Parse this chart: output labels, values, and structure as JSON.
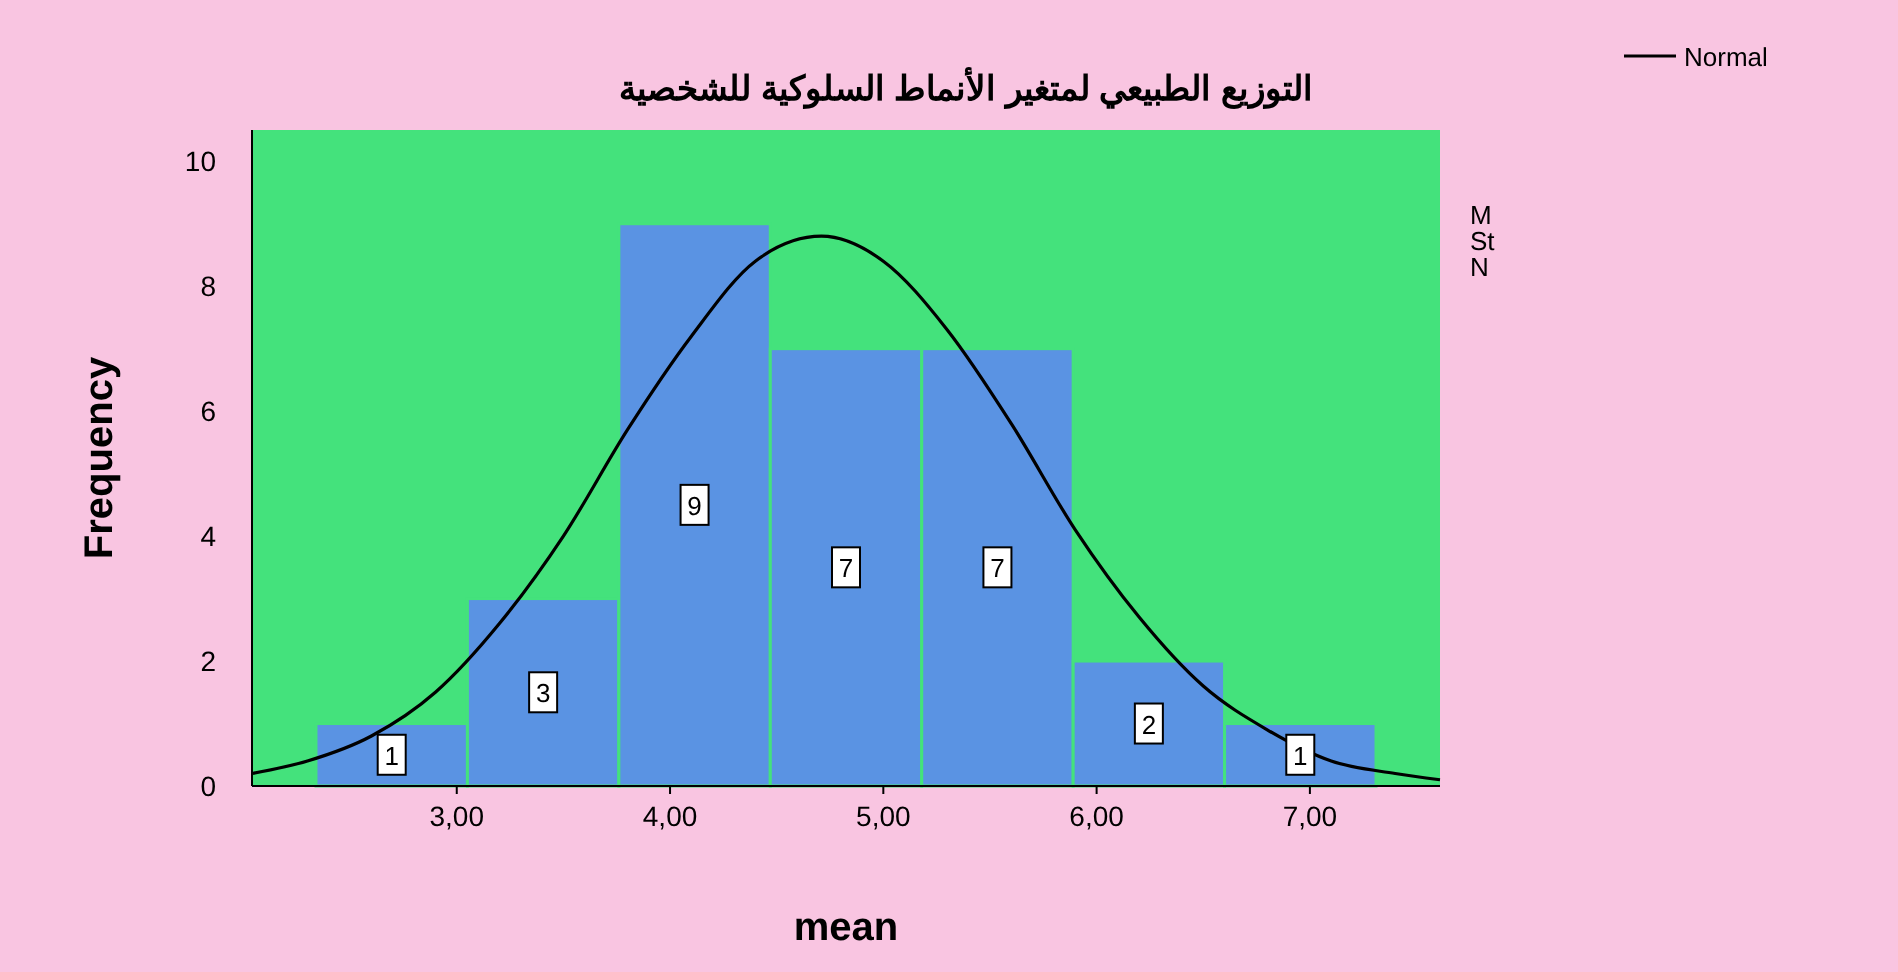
{
  "chart_data": {
    "type": "histogram",
    "title": "التوزيع الطبيعي لمتغير الأنماط السلوكية للشخصية",
    "xlabel": "mean",
    "ylabel": "Frequency",
    "bins": [
      2.34,
      3.05,
      3.76,
      4.47,
      5.18,
      5.89,
      6.6,
      7.31
    ],
    "values": [
      1,
      3,
      9,
      7,
      7,
      2,
      1
    ],
    "color": "#5a93e3",
    "value_labels": [
      "1",
      "3",
      "9",
      "7",
      "7",
      "2",
      "1"
    ],
    "series": [
      {
        "name": "Normal",
        "type": "line",
        "color": "#000000",
        "x": [
          2.04,
          2.3,
          2.6,
          2.9,
          3.2,
          3.5,
          3.8,
          4.1,
          4.4,
          4.71,
          5.0,
          5.3,
          5.6,
          5.9,
          6.2,
          6.5,
          6.8,
          7.1,
          7.4,
          7.61
        ],
        "values": [
          0.2,
          0.4,
          0.8,
          1.5,
          2.6,
          4.0,
          5.7,
          7.2,
          8.4,
          8.8,
          8.4,
          7.3,
          5.8,
          4.1,
          2.7,
          1.6,
          0.9,
          0.4,
          0.2,
          0.1
        ]
      }
    ],
    "xlim": [
      2.04,
      7.61
    ],
    "xticks": [
      {
        "value": 3,
        "label": "3,00"
      },
      {
        "value": 4,
        "label": "4,00"
      },
      {
        "value": 5,
        "label": "5,00"
      },
      {
        "value": 6,
        "label": "6,00"
      },
      {
        "value": 7,
        "label": "7,00"
      }
    ],
    "ylim": [
      0,
      10.5
    ],
    "yticks": [
      0,
      2,
      4,
      6,
      8,
      10
    ],
    "legend": "top right",
    "marker": "none",
    "annotations": [
      "M",
      "St",
      "N"
    ]
  }
}
